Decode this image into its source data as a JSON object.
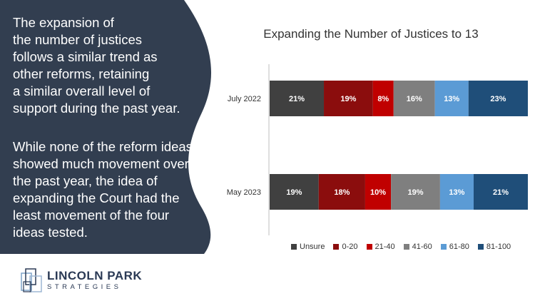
{
  "text_panel": {
    "para1": [
      "The expansion of",
      "the number of justices",
      "follows a similar trend as",
      "other reforms, retaining",
      "a similar overall level of",
      "support during the past year."
    ],
    "para2": [
      "While none of the reform ideas",
      "showed much movement over",
      "the past year, the idea of",
      "expanding the Court had the",
      "least movement of the four",
      "ideas tested."
    ]
  },
  "logo": {
    "name": "LINCOLN PARK",
    "subtitle": "STRATEGIES"
  },
  "colors": {
    "panel": "#323e50",
    "series": [
      "#404040",
      "#8b0d0d",
      "#c00000",
      "#7f7f7f",
      "#5b9bd5",
      "#1f4e79"
    ]
  },
  "chart_data": {
    "type": "bar",
    "orientation": "horizontal-stacked-100",
    "title": "Expanding the Number of Justices to 13",
    "categories": [
      "July 2022",
      "May 2023"
    ],
    "series": [
      {
        "name": "Unsure",
        "values": [
          21,
          19
        ]
      },
      {
        "name": "0-20",
        "values": [
          19,
          18
        ]
      },
      {
        "name": "21-40",
        "values": [
          8,
          10
        ]
      },
      {
        "name": "41-60",
        "values": [
          16,
          19
        ]
      },
      {
        "name": "61-80",
        "values": [
          13,
          13
        ]
      },
      {
        "name": "81-100",
        "values": [
          23,
          21
        ]
      }
    ],
    "value_suffix": "%",
    "legend_position": "bottom"
  }
}
